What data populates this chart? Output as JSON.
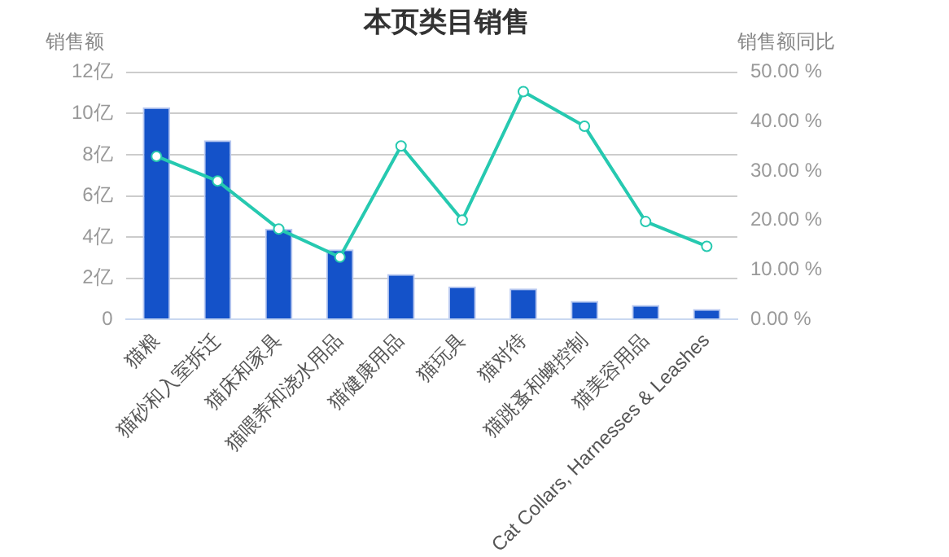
{
  "chart_data": {
    "type": "bar",
    "title": "本页类目销售",
    "ylabel": "销售额",
    "y2label": "销售额同比",
    "categories": [
      "猫粮",
      "猫砂和入室拆迁",
      "猫床和家具",
      "猫喂养和浇水用品",
      "猫健康用品",
      "猫玩具",
      "猫对待",
      "猫跳蚤和蜱控制",
      "猫美容用品",
      "Cat Collars, Harnesses & Leashes"
    ],
    "series": [
      {
        "color": "#1452c9",
        "values": [
          10.3,
          8.7,
          4.4,
          3.4,
          2.2,
          1.6,
          1.5,
          0.9,
          0.7,
          0.5
        ]
      },
      {
        "type": "line",
        "axis": "y2",
        "color": "#26c9b0",
        "values": [
          33.0,
          28.0,
          18.3,
          12.6,
          35.1,
          20.1,
          46.1,
          39.1,
          19.8,
          14.8
        ]
      }
    ],
    "ylim": [
      0,
      12
    ],
    "yticks": [
      {
        "value": 0,
        "label": "0"
      },
      {
        "value": 2,
        "label": "2亿"
      },
      {
        "value": 4,
        "label": "4亿"
      },
      {
        "value": 6,
        "label": "6亿"
      },
      {
        "value": 8,
        "label": "8亿"
      },
      {
        "value": 10,
        "label": "10亿"
      },
      {
        "value": 12,
        "label": "12亿"
      }
    ],
    "y2lim": [
      0,
      50
    ],
    "y2ticks": [
      {
        "value": 0,
        "label": "0.00 %"
      },
      {
        "value": 10,
        "label": "10.00 %"
      },
      {
        "value": 20,
        "label": "20.00 %"
      },
      {
        "value": 30,
        "label": "30.00 %"
      },
      {
        "value": 40,
        "label": "40.00 %"
      },
      {
        "value": 50,
        "label": "50.00 %"
      }
    ],
    "grid": "y",
    "legend": false,
    "marker": "circle",
    "line_style": "solid"
  }
}
